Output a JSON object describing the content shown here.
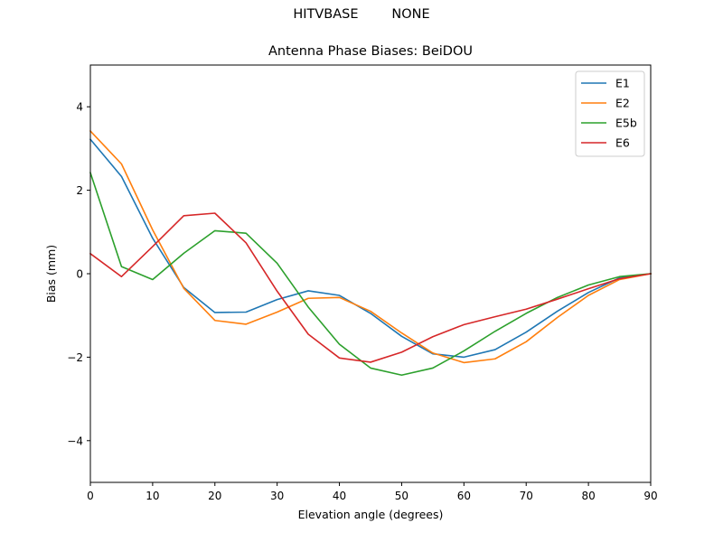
{
  "figure": {
    "suptitle": "HITVBASE        NONE"
  },
  "chart_data": {
    "type": "line",
    "title": "Antenna Phase Biases: BeiDOU",
    "xlabel": "Elevation angle (degrees)",
    "ylabel": "Bias (mm)",
    "xlim": [
      0,
      90
    ],
    "ylim": [
      -5,
      5
    ],
    "xticks": [
      0,
      10,
      20,
      30,
      40,
      50,
      60,
      70,
      80,
      90
    ],
    "yticks": [
      -4,
      -2,
      0,
      2,
      4
    ],
    "ytick_labels": [
      "−4",
      "−2",
      "0",
      "2",
      "4"
    ],
    "grid": false,
    "legend_position": "top-right",
    "x": [
      0,
      5,
      10,
      15,
      20,
      25,
      30,
      35,
      40,
      45,
      50,
      55,
      60,
      65,
      70,
      75,
      80,
      85,
      90
    ],
    "series": [
      {
        "name": "E1",
        "color": "#1f77b4",
        "values": [
          3.22,
          2.33,
          0.85,
          -0.33,
          -0.93,
          -0.92,
          -0.62,
          -0.41,
          -0.52,
          -0.95,
          -1.5,
          -1.92,
          -2.0,
          -1.82,
          -1.4,
          -0.9,
          -0.45,
          -0.1,
          0.0
        ]
      },
      {
        "name": "E2",
        "color": "#ff7f0e",
        "values": [
          3.42,
          2.63,
          1.05,
          -0.35,
          -1.12,
          -1.21,
          -0.92,
          -0.59,
          -0.57,
          -0.9,
          -1.42,
          -1.9,
          -2.13,
          -2.04,
          -1.63,
          -1.05,
          -0.52,
          -0.14,
          0.0
        ]
      },
      {
        "name": "E5b",
        "color": "#2ca02c",
        "values": [
          2.42,
          0.17,
          -0.14,
          0.49,
          1.03,
          0.97,
          0.25,
          -0.8,
          -1.69,
          -2.26,
          -2.43,
          -2.26,
          -1.85,
          -1.38,
          -0.95,
          -0.57,
          -0.27,
          -0.07,
          0.0
        ]
      },
      {
        "name": "E6",
        "color": "#d62728",
        "values": [
          0.48,
          -0.07,
          0.65,
          1.39,
          1.45,
          0.74,
          -0.42,
          -1.45,
          -2.02,
          -2.12,
          -1.88,
          -1.51,
          -1.22,
          -1.03,
          -0.85,
          -0.61,
          -0.36,
          -0.12,
          0.0
        ]
      }
    ]
  }
}
